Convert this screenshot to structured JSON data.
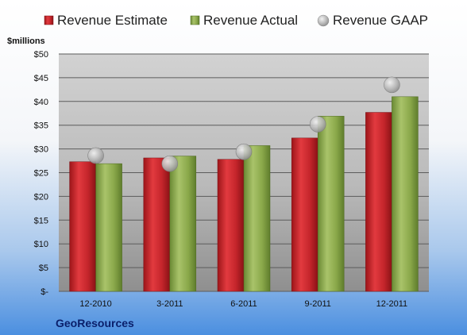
{
  "chart_data": {
    "type": "bar",
    "unit_label": "$millions",
    "company": "GeoResources",
    "categories": [
      "12-2010",
      "3-2011",
      "6-2011",
      "9-2011",
      "12-2011"
    ],
    "ylim": [
      0,
      50
    ],
    "y_ticks": [
      0,
      5,
      10,
      15,
      20,
      25,
      30,
      35,
      40,
      45,
      50
    ],
    "y_tick_labels": [
      "$-",
      "$5",
      "$10",
      "$15",
      "$20",
      "$25",
      "$30",
      "$35",
      "$40",
      "$45",
      "$50"
    ],
    "grid": true,
    "legend_position": "top",
    "series": [
      {
        "name": "Revenue Estimate",
        "kind": "bar",
        "color": "#c0272d",
        "values": [
          27.3,
          28.1,
          27.8,
          32.3,
          37.7
        ]
      },
      {
        "name": "Revenue Actual",
        "kind": "bar",
        "color": "#8aa84a",
        "values": [
          26.9,
          28.5,
          30.7,
          36.9,
          41.0
        ]
      },
      {
        "name": "Revenue GAAP",
        "kind": "marker",
        "color": "#b8b8b8",
        "values": [
          28.6,
          26.9,
          29.4,
          35.2,
          43.5
        ]
      }
    ]
  }
}
